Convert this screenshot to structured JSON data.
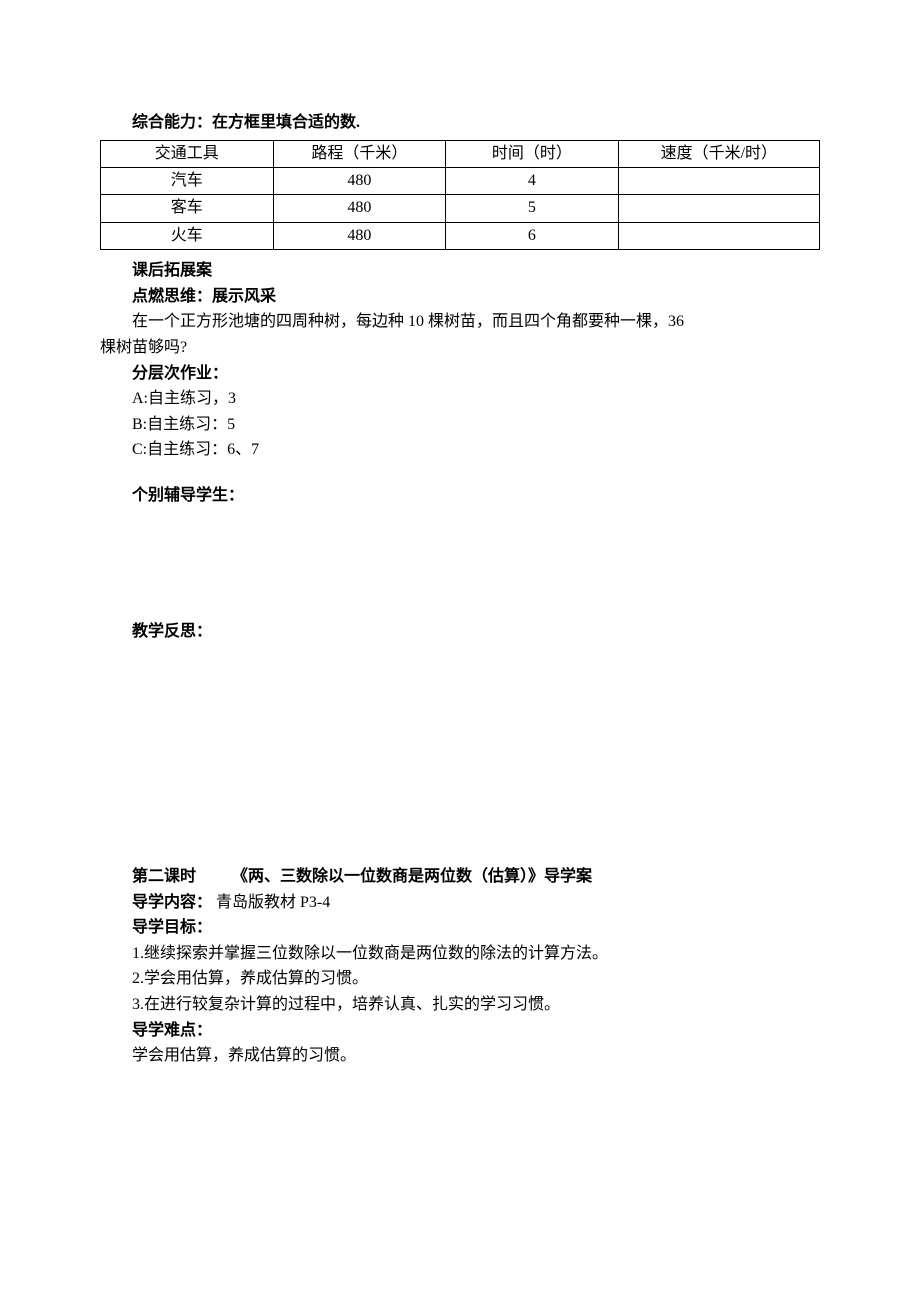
{
  "top": {
    "heading": "综合能力：在方框里填合适的数.",
    "table": {
      "columns": [
        "交通工具",
        "路程（千米）",
        "时间（时）",
        "速度（千米/时）"
      ],
      "rows": [
        [
          "汽车",
          "480",
          "4",
          ""
        ],
        [
          "客车",
          "480",
          "5",
          ""
        ],
        [
          "火车",
          "480",
          "6",
          ""
        ]
      ]
    }
  },
  "after": {
    "title": "课后拓展案",
    "subtitle": "点燃思维：展示风采",
    "body1": "在一个正方形池塘的四周种树，每边种 10 棵树苗，而且四个角都要种一棵，36",
    "body2": "棵树苗够吗?",
    "layered_title": "分层次作业：",
    "a": "A:自主练习，3",
    "b": "B:自主练习：5",
    "c": "C:自主练习：6、7",
    "tutor": "个别辅导学生：",
    "reflect": "教学反思："
  },
  "next": {
    "lesson_label": "第二课时",
    "lesson_title": "《两、三数除以一位数商是两位数（估算）》导学案",
    "content_label": "导学内容：",
    "content_value": " 青岛版教材 P3-4",
    "goal_label": "导学目标：",
    "g1": "1.继续探索并掌握三位数除以一位数商是两位数的除法的计算方法。",
    "g2": "2.学会用估算，养成估算的习惯。",
    "g3": "3.在进行较复杂计算的过程中，培养认真、扎实的学习习惯。",
    "diff_label": "导学难点：",
    "diff_value": "学会用估算，养成估算的习惯。"
  }
}
